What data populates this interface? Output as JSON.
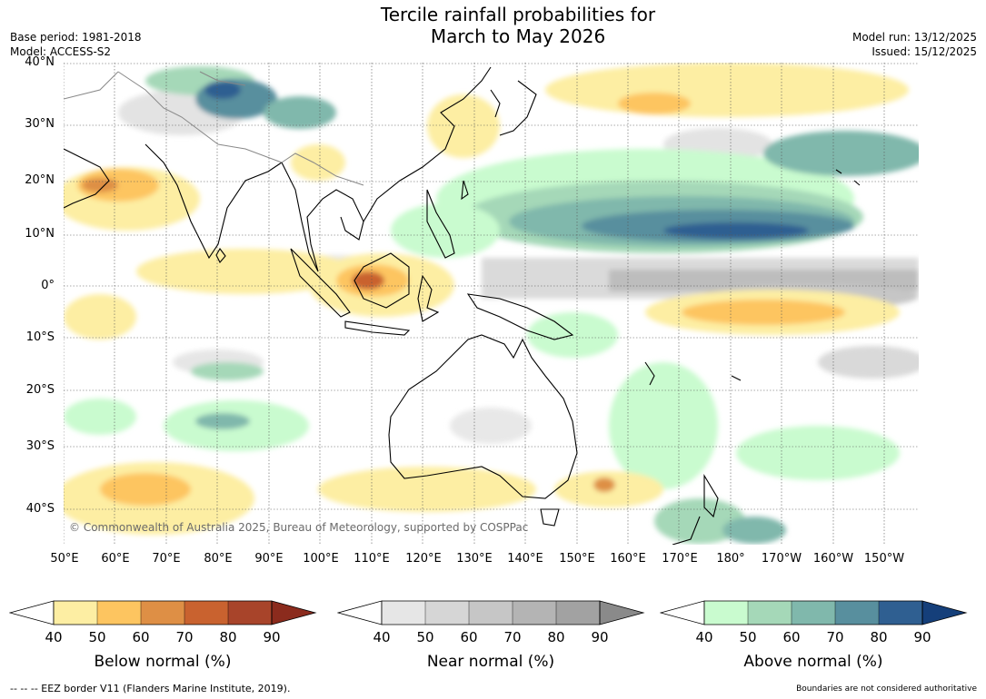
{
  "title": {
    "line1": "Tercile rainfall probabilities for",
    "line2": "March to May 2026"
  },
  "meta": {
    "base_period": "Base period: 1981-2018",
    "model": "Model: ACCESS-S2",
    "model_run": "Model run: 13/12/2025",
    "issued": "Issued: 15/12/2025"
  },
  "map": {
    "latitude_labels": [
      "40°N",
      "30°N",
      "20°N",
      "10°N",
      "0°",
      "10°S",
      "20°S",
      "30°S",
      "40°S"
    ],
    "longitude_labels": [
      "50°E",
      "60°E",
      "70°E",
      "80°E",
      "90°E",
      "100°E",
      "110°E",
      "120°E",
      "130°E",
      "140°E",
      "150°E",
      "160°E",
      "170°E",
      "180°",
      "170°W",
      "160°W",
      "150°W"
    ],
    "copyright": "© Commonwealth of Australia 2025, Bureau of Meteorology, supported by COSPPac"
  },
  "legend": {
    "ticks": [
      "40",
      "50",
      "60",
      "70",
      "80",
      "90"
    ],
    "below": {
      "title": "Below normal (%)",
      "colors": [
        "#ffffff",
        "#fdeea3",
        "#fdc560",
        "#de8f45",
        "#c9622f",
        "#a8442a",
        "#8b2b1d"
      ]
    },
    "near": {
      "title": "Near normal (%)",
      "colors": [
        "#ffffff",
        "#e6e6e6",
        "#d6d6d6",
        "#c6c6c6",
        "#b4b4b4",
        "#a2a2a2",
        "#8a8a8a"
      ]
    },
    "above": {
      "title": "Above normal (%)",
      "colors": [
        "#ffffff",
        "#c9fbcf",
        "#a5d8b8",
        "#80b8ac",
        "#588f9e",
        "#2f5f91",
        "#153f7a"
      ]
    }
  },
  "footer": {
    "eez": "--  --  -- EEZ border V11 (Flanders Marine Institute, 2019).",
    "disclaimer": "Boundaries are not considered authoritative"
  }
}
